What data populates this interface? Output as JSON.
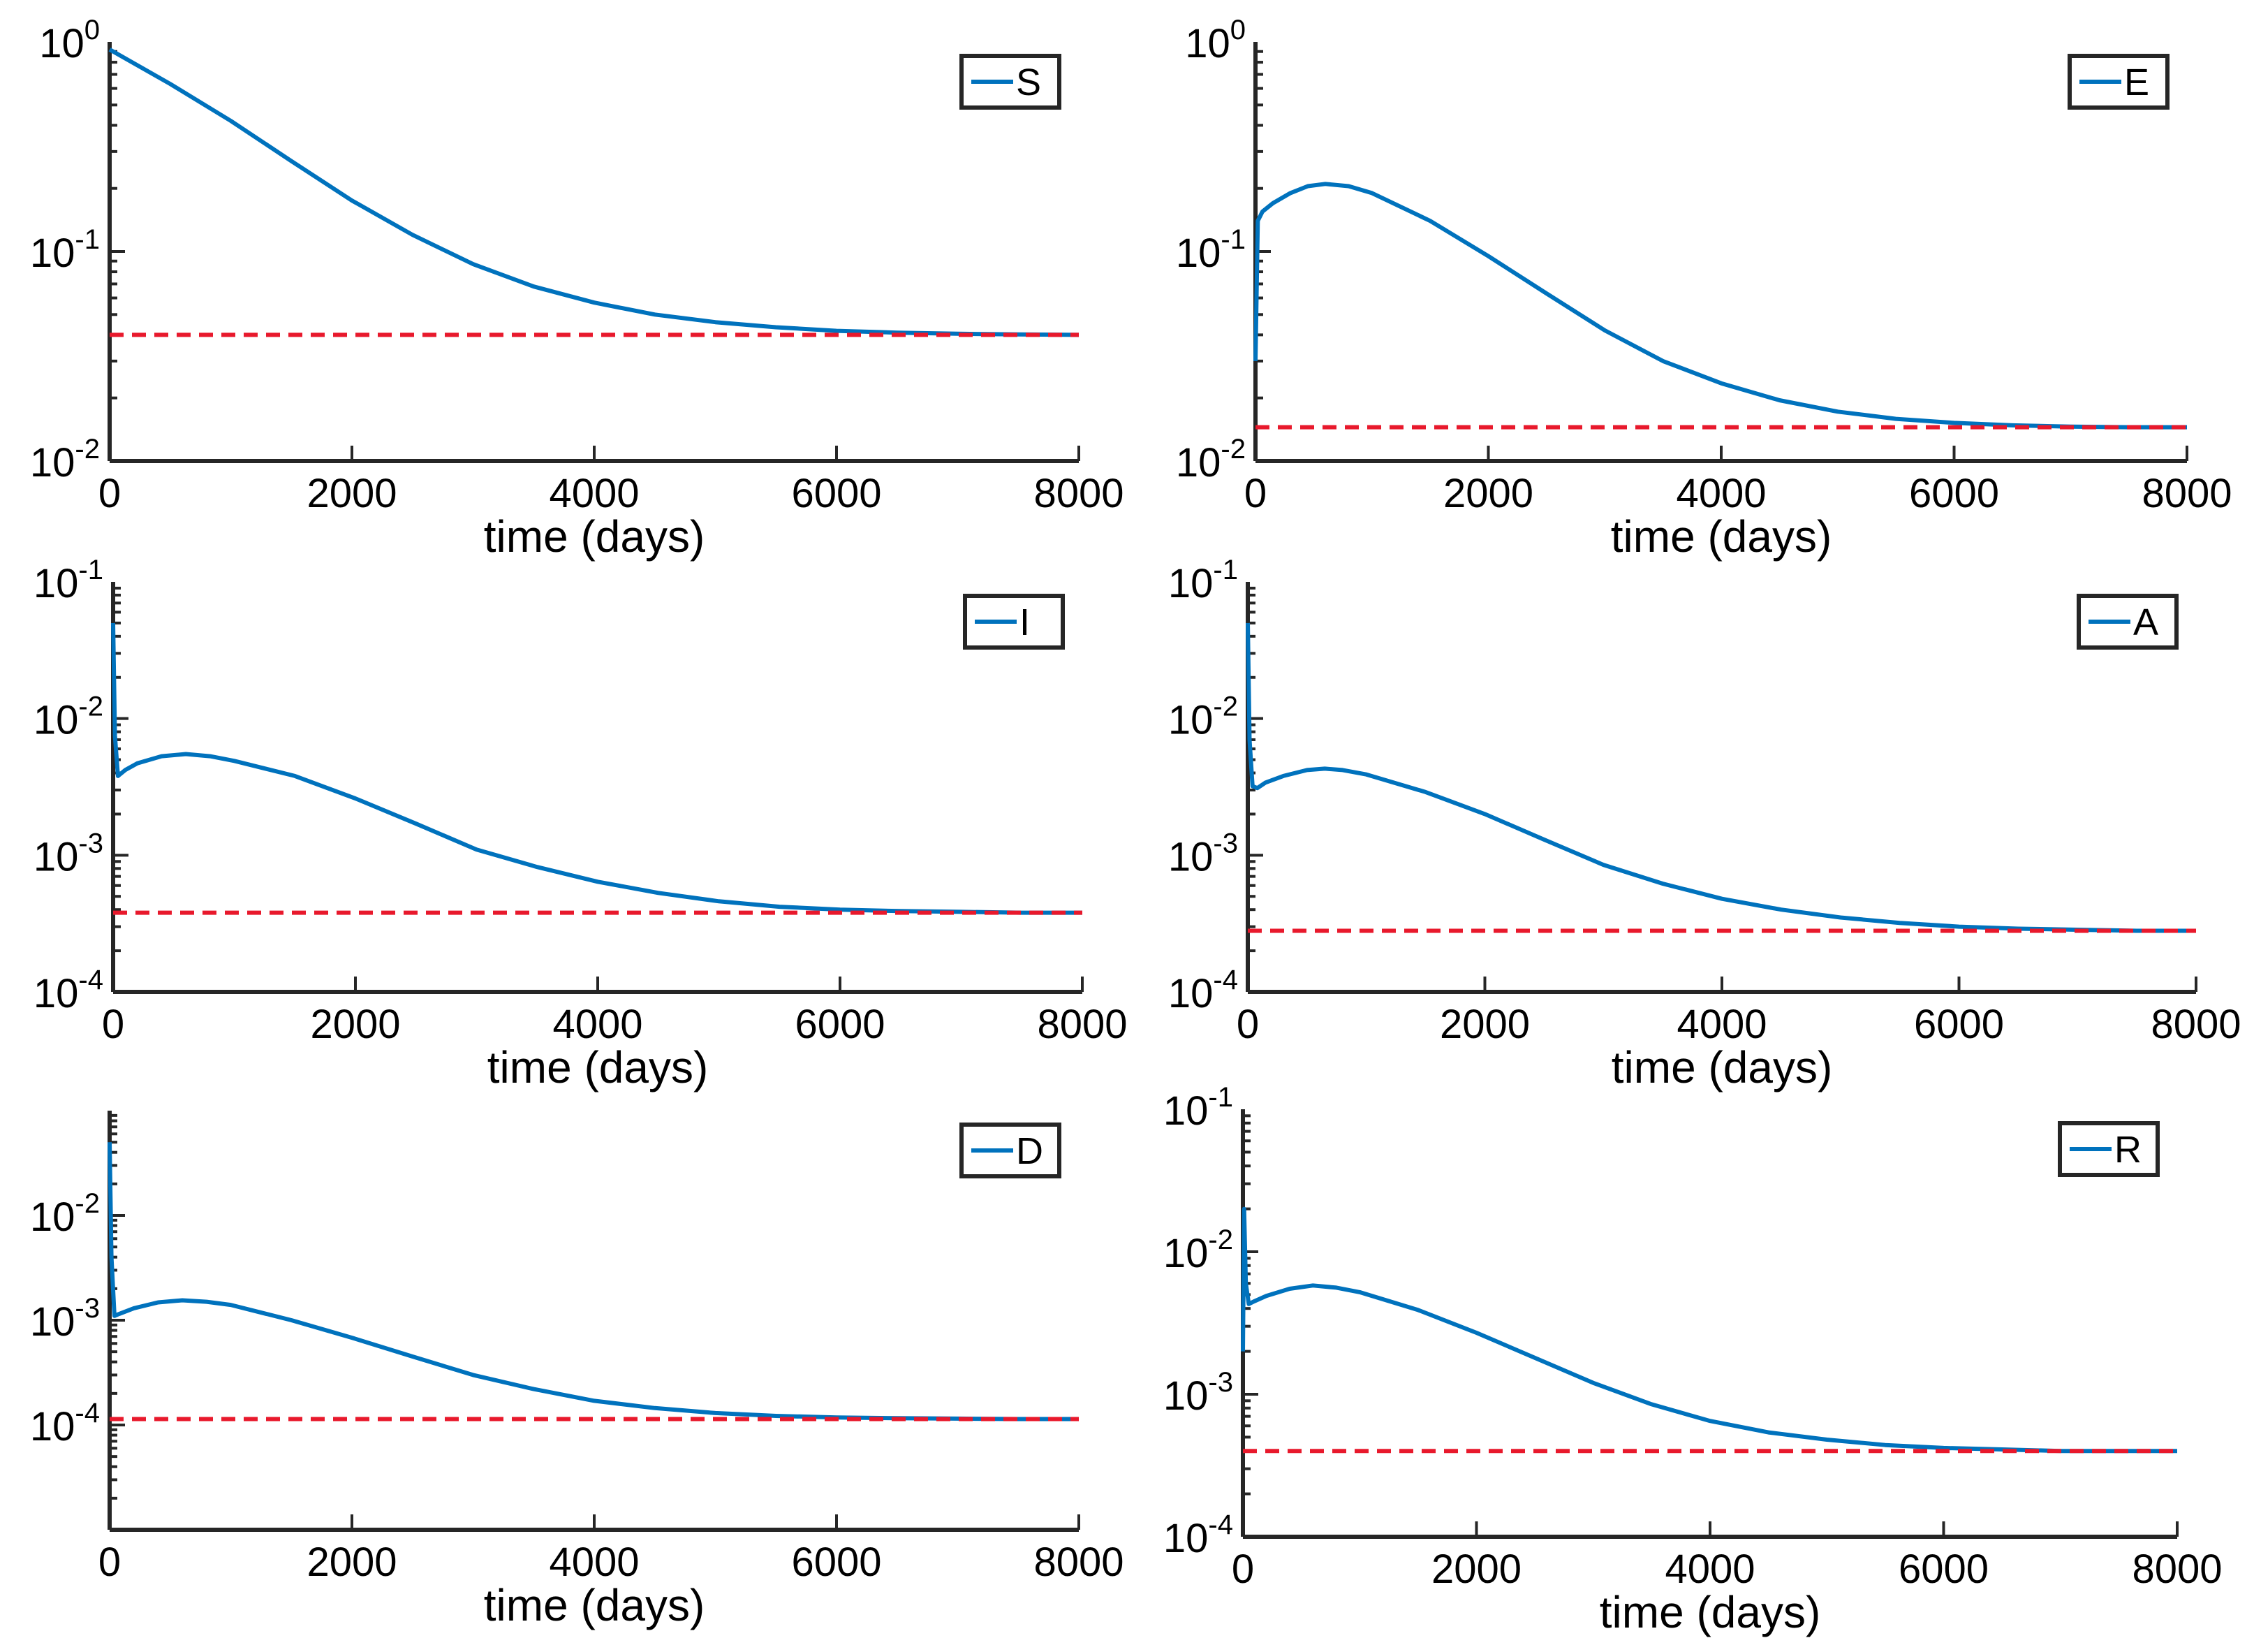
{
  "colors": {
    "model_line": "#0072BD",
    "equilibrium_line": "#E8192C",
    "axis": "#262626",
    "background": "#FFFFFF"
  },
  "chart_data": [
    {
      "type": "line",
      "title": "",
      "legend": "S",
      "legend_position": "top-right",
      "xlabel": "time (days)",
      "ylabel": "",
      "yscale": "log",
      "xlim": [
        0,
        8000
      ],
      "ylim": [
        0.01,
        1
      ],
      "xticks": [
        "0",
        "2000",
        "4000",
        "6000",
        "8000"
      ],
      "yticks": [
        {
          "base": "10",
          "exp": "-2",
          "value": 0.01
        },
        {
          "base": "10",
          "exp": "-1",
          "value": 0.1
        },
        {
          "base": "10",
          "exp": "0",
          "value": 1
        }
      ],
      "series": [
        {
          "name": "S",
          "style": "solid",
          "x": [
            0,
            500,
            1000,
            1500,
            2000,
            2500,
            3000,
            3500,
            4000,
            4500,
            5000,
            5500,
            6000,
            6500,
            7000,
            7500,
            8000
          ],
          "values": [
            0.92,
            0.63,
            0.42,
            0.27,
            0.175,
            0.12,
            0.087,
            0.068,
            0.057,
            0.05,
            0.046,
            0.0435,
            0.0418,
            0.041,
            0.0405,
            0.0402,
            0.04
          ]
        },
        {
          "name": "equilibrium",
          "style": "dashed",
          "x": [
            0,
            8000
          ],
          "values": [
            0.04,
            0.04
          ]
        }
      ]
    },
    {
      "type": "line",
      "title": "",
      "legend": "E",
      "legend_position": "top-right",
      "xlabel": "time (days)",
      "ylabel": "",
      "yscale": "log",
      "xlim": [
        0,
        8000
      ],
      "ylim": [
        0.01,
        1
      ],
      "xticks": [
        "0",
        "2000",
        "4000",
        "6000",
        "8000"
      ],
      "yticks": [
        {
          "base": "10",
          "exp": "-2",
          "value": 0.01
        },
        {
          "base": "10",
          "exp": "-1",
          "value": 0.1
        },
        {
          "base": "10",
          "exp": "0",
          "value": 1
        }
      ],
      "series": [
        {
          "name": "E",
          "style": "solid",
          "x": [
            0,
            20,
            60,
            150,
            300,
            450,
            600,
            800,
            1000,
            1500,
            2000,
            2500,
            3000,
            3500,
            4000,
            4500,
            5000,
            5500,
            6000,
            6500,
            7000,
            7500,
            8000
          ],
          "values": [
            0.03,
            0.14,
            0.155,
            0.17,
            0.19,
            0.205,
            0.21,
            0.205,
            0.19,
            0.14,
            0.095,
            0.063,
            0.042,
            0.03,
            0.0235,
            0.0195,
            0.0172,
            0.0159,
            0.0152,
            0.0148,
            0.0146,
            0.0145,
            0.0145
          ]
        },
        {
          "name": "equilibrium",
          "style": "dashed",
          "x": [
            0,
            8000
          ],
          "values": [
            0.0145,
            0.0145
          ]
        }
      ]
    },
    {
      "type": "line",
      "title": "",
      "legend": "I",
      "legend_position": "top-right",
      "xlabel": "time (days)",
      "ylabel": "",
      "yscale": "log",
      "xlim": [
        0,
        8000
      ],
      "ylim": [
        0.0001,
        0.1
      ],
      "xticks": [
        "0",
        "2000",
        "4000",
        "6000",
        "8000"
      ],
      "yticks": [
        {
          "base": "10",
          "exp": "-4",
          "value": 0.0001
        },
        {
          "base": "10",
          "exp": "-3",
          "value": 0.001
        },
        {
          "base": "10",
          "exp": "-2",
          "value": 0.01
        },
        {
          "base": "10",
          "exp": "-1",
          "value": 0.1
        }
      ],
      "series": [
        {
          "name": "I",
          "style": "solid",
          "x": [
            0,
            15,
            40,
            100,
            200,
            400,
            600,
            800,
            1000,
            1500,
            2000,
            2500,
            3000,
            3500,
            4000,
            4500,
            5000,
            5500,
            6000,
            6500,
            7000,
            7500,
            8000
          ],
          "values": [
            0.05,
            0.0075,
            0.0038,
            0.0042,
            0.0047,
            0.0053,
            0.0055,
            0.0053,
            0.0049,
            0.0038,
            0.0026,
            0.0017,
            0.0011,
            0.00082,
            0.00064,
            0.00053,
            0.00046,
            0.00042,
            0.0004,
            0.00039,
            0.000385,
            0.00038,
            0.00038
          ]
        },
        {
          "name": "equilibrium",
          "style": "dashed",
          "x": [
            0,
            8000
          ],
          "values": [
            0.00038,
            0.00038
          ]
        }
      ]
    },
    {
      "type": "line",
      "title": "",
      "legend": "A",
      "legend_position": "top-right",
      "xlabel": "time (days)",
      "ylabel": "",
      "yscale": "log",
      "xlim": [
        0,
        8000
      ],
      "ylim": [
        0.0001,
        0.1
      ],
      "xticks": [
        "0",
        "2000",
        "4000",
        "6000",
        "8000"
      ],
      "yticks": [
        {
          "base": "10",
          "exp": "-4",
          "value": 0.0001
        },
        {
          "base": "10",
          "exp": "-3",
          "value": 0.001
        },
        {
          "base": "10",
          "exp": "-2",
          "value": 0.01
        },
        {
          "base": "10",
          "exp": "-1",
          "value": 0.1
        }
      ],
      "series": [
        {
          "name": "A",
          "style": "solid",
          "x": [
            0,
            15,
            40,
            80,
            150,
            300,
            500,
            650,
            800,
            1000,
            1500,
            2000,
            2500,
            3000,
            3500,
            4000,
            4500,
            5000,
            5500,
            6000,
            6500,
            7000,
            7500,
            8000
          ],
          "values": [
            0.05,
            0.007,
            0.0032,
            0.0031,
            0.0034,
            0.0038,
            0.0042,
            0.0043,
            0.0042,
            0.0039,
            0.0029,
            0.002,
            0.0013,
            0.00085,
            0.00062,
            0.00048,
            0.0004,
            0.00035,
            0.00032,
            0.0003,
            0.00029,
            0.000285,
            0.00028,
            0.00028
          ]
        },
        {
          "name": "equilibrium",
          "style": "dashed",
          "x": [
            0,
            8000
          ],
          "values": [
            0.00028,
            0.00028
          ]
        }
      ]
    },
    {
      "type": "line",
      "title": "",
      "legend": "D",
      "legend_position": "top-right",
      "xlabel": "time (days)",
      "ylabel": "",
      "yscale": "log",
      "xlim": [
        0,
        8000
      ],
      "ylim": [
        1e-05,
        0.1
      ],
      "xticks": [
        "0",
        "2000",
        "4000",
        "6000",
        "8000"
      ],
      "yticks": [
        {
          "base": "10",
          "exp": "-4",
          "value": 0.0001
        },
        {
          "base": "10",
          "exp": "-3",
          "value": 0.001
        },
        {
          "base": "10",
          "exp": "-2",
          "value": 0.01
        }
      ],
      "series": [
        {
          "name": "D",
          "style": "solid",
          "x": [
            0,
            15,
            40,
            80,
            200,
            400,
            600,
            800,
            1000,
            1500,
            2000,
            2500,
            3000,
            3500,
            4000,
            4500,
            5000,
            5500,
            6000,
            6500,
            7000,
            7500,
            8000
          ],
          "values": [
            0.05,
            0.004,
            0.0011,
            0.00115,
            0.0013,
            0.00148,
            0.00155,
            0.0015,
            0.0014,
            0.001,
            0.00068,
            0.00045,
            0.0003,
            0.00022,
            0.00017,
            0.000145,
            0.00013,
            0.000122,
            0.000118,
            0.000116,
            0.000115,
            0.000114,
            0.000114
          ]
        },
        {
          "name": "equilibrium",
          "style": "dashed",
          "x": [
            0,
            8000
          ],
          "values": [
            0.000114,
            0.000114
          ]
        }
      ]
    },
    {
      "type": "line",
      "title": "",
      "legend": "R",
      "legend_position": "top-right",
      "xlabel": "time (days)",
      "ylabel": "",
      "yscale": "log",
      "xlim": [
        0,
        8000
      ],
      "ylim": [
        0.0001,
        0.1
      ],
      "xticks": [
        "0",
        "2000",
        "4000",
        "6000",
        "8000"
      ],
      "yticks": [
        {
          "base": "10",
          "exp": "-4",
          "value": 0.0001
        },
        {
          "base": "10",
          "exp": "-3",
          "value": 0.001
        },
        {
          "base": "10",
          "exp": "-2",
          "value": 0.01
        },
        {
          "base": "10",
          "exp": "-1",
          "value": 0.1
        }
      ],
      "series": [
        {
          "name": "R",
          "style": "solid",
          "x": [
            0,
            10,
            25,
            50,
            100,
            200,
            400,
            600,
            800,
            1000,
            1500,
            2000,
            2500,
            3000,
            3500,
            4000,
            4500,
            5000,
            5500,
            6000,
            6500,
            7000,
            7500,
            8000
          ],
          "values": [
            0.002,
            0.02,
            0.006,
            0.0043,
            0.0045,
            0.0049,
            0.0055,
            0.0058,
            0.0056,
            0.0052,
            0.0039,
            0.0027,
            0.0018,
            0.0012,
            0.00085,
            0.00065,
            0.00054,
            0.00048,
            0.00044,
            0.00042,
            0.00041,
            0.0004,
            0.0004,
            0.0004
          ]
        },
        {
          "name": "equilibrium",
          "style": "dashed",
          "x": [
            0,
            8000
          ],
          "values": [
            0.0004,
            0.0004
          ]
        }
      ]
    }
  ]
}
